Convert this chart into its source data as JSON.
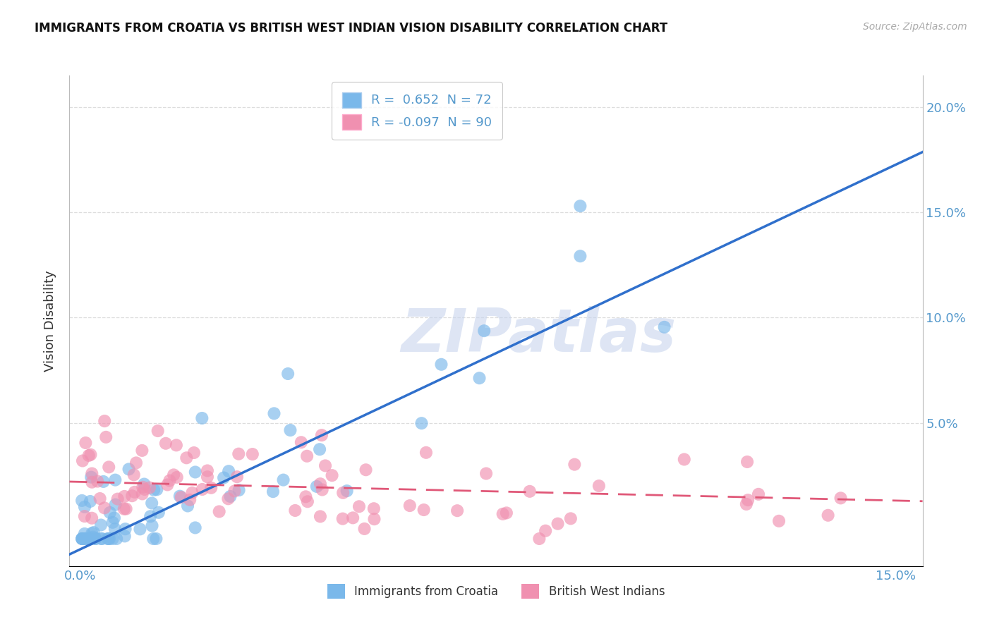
{
  "title": "IMMIGRANTS FROM CROATIA VS BRITISH WEST INDIAN VISION DISABILITY CORRELATION CHART",
  "source": "Source: ZipAtlas.com",
  "ylabel": "Vision Disability",
  "xlim": [
    -0.002,
    0.155
  ],
  "ylim": [
    -0.018,
    0.215
  ],
  "blue_R": 0.652,
  "blue_N": 72,
  "pink_R": -0.097,
  "pink_N": 90,
  "blue_color": "#7ab8ea",
  "pink_color": "#f090b0",
  "blue_line_color": "#3070cc",
  "pink_line_color": "#e05878",
  "watermark_color": "#c8d5ee",
  "tick_color": "#5599cc",
  "grid_color": "#dddddd",
  "legend_label1": "Immigrants from Croatia",
  "legend_label2": "British West Indians",
  "blue_trend_x0": 0.0,
  "blue_trend_y0": -0.01,
  "blue_trend_x1": 0.152,
  "blue_trend_y1": 0.175,
  "pink_trend_x0": 0.0,
  "pink_trend_y0": 0.022,
  "pink_trend_x1": 0.152,
  "pink_trend_y1": 0.013
}
